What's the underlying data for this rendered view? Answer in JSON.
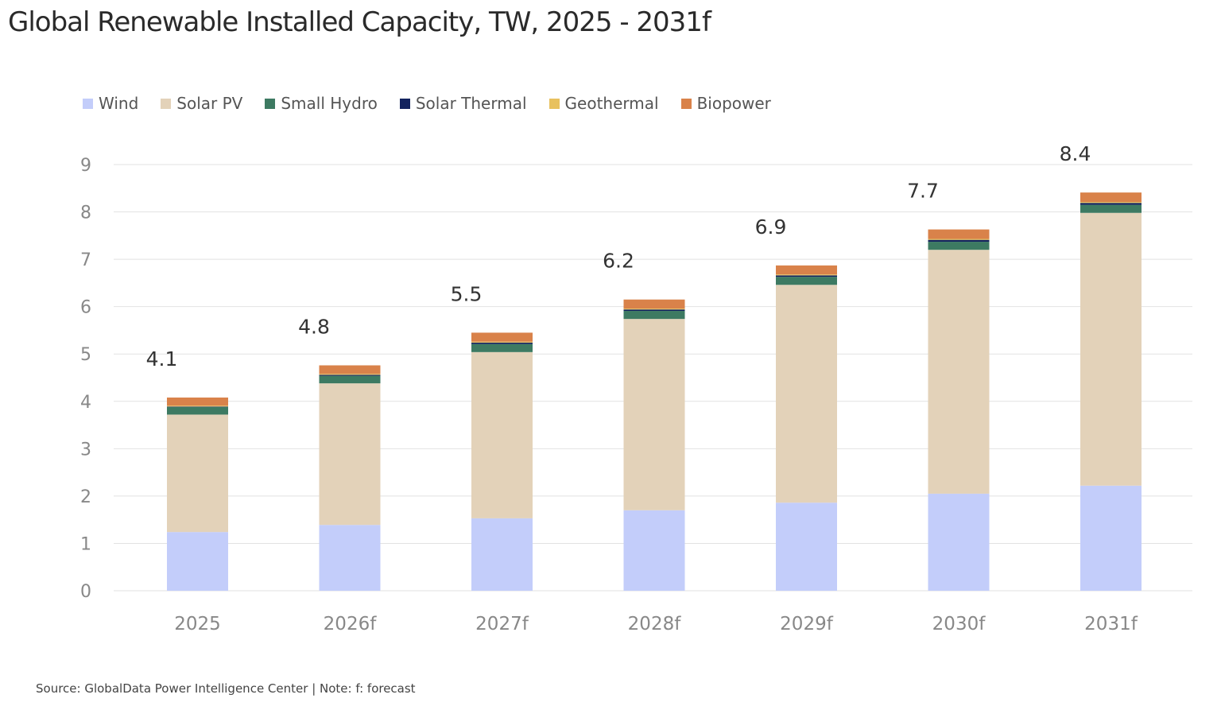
{
  "chart_data": {
    "type": "bar",
    "stacked": true,
    "title": "Global Renewable Installed Capacity, TW, 2025 - 2031f",
    "categories": [
      "2025",
      "2026f",
      "2027f",
      "2028f",
      "2029f",
      "2030f",
      "2031f"
    ],
    "series": [
      {
        "name": "Wind",
        "color": "#c3cdfa",
        "values": [
          1.24,
          1.39,
          1.53,
          1.7,
          1.86,
          2.05,
          2.22
        ]
      },
      {
        "name": "Solar PV",
        "color": "#e3d2b9",
        "values": [
          2.48,
          2.99,
          3.51,
          4.04,
          4.6,
          5.15,
          5.76
        ]
      },
      {
        "name": "Small Hydro",
        "color": "#3d7a62",
        "values": [
          0.16,
          0.16,
          0.17,
          0.17,
          0.17,
          0.17,
          0.17
        ]
      },
      {
        "name": "Solar Thermal",
        "color": "#13235e",
        "values": [
          0.01,
          0.02,
          0.03,
          0.03,
          0.03,
          0.04,
          0.04
        ]
      },
      {
        "name": "Geothermal",
        "color": "#e8c15e",
        "values": [
          0.02,
          0.02,
          0.02,
          0.02,
          0.02,
          0.02,
          0.02
        ]
      },
      {
        "name": "Biopower",
        "color": "#d9824a",
        "values": [
          0.17,
          0.18,
          0.19,
          0.19,
          0.19,
          0.2,
          0.2
        ]
      }
    ],
    "totals_labels": [
      "4.1",
      "4.8",
      "5.5",
      "6.2",
      "6.9",
      "7.7",
      "8.4"
    ],
    "ylim": [
      0,
      9
    ],
    "yticks": [
      "0",
      "1",
      "2",
      "3",
      "4",
      "5",
      "6",
      "7",
      "8",
      "9"
    ],
    "grid": true,
    "legend": "top-left"
  },
  "source": "Source: GlobalData Power Intelligence Center | Note: f: forecast"
}
